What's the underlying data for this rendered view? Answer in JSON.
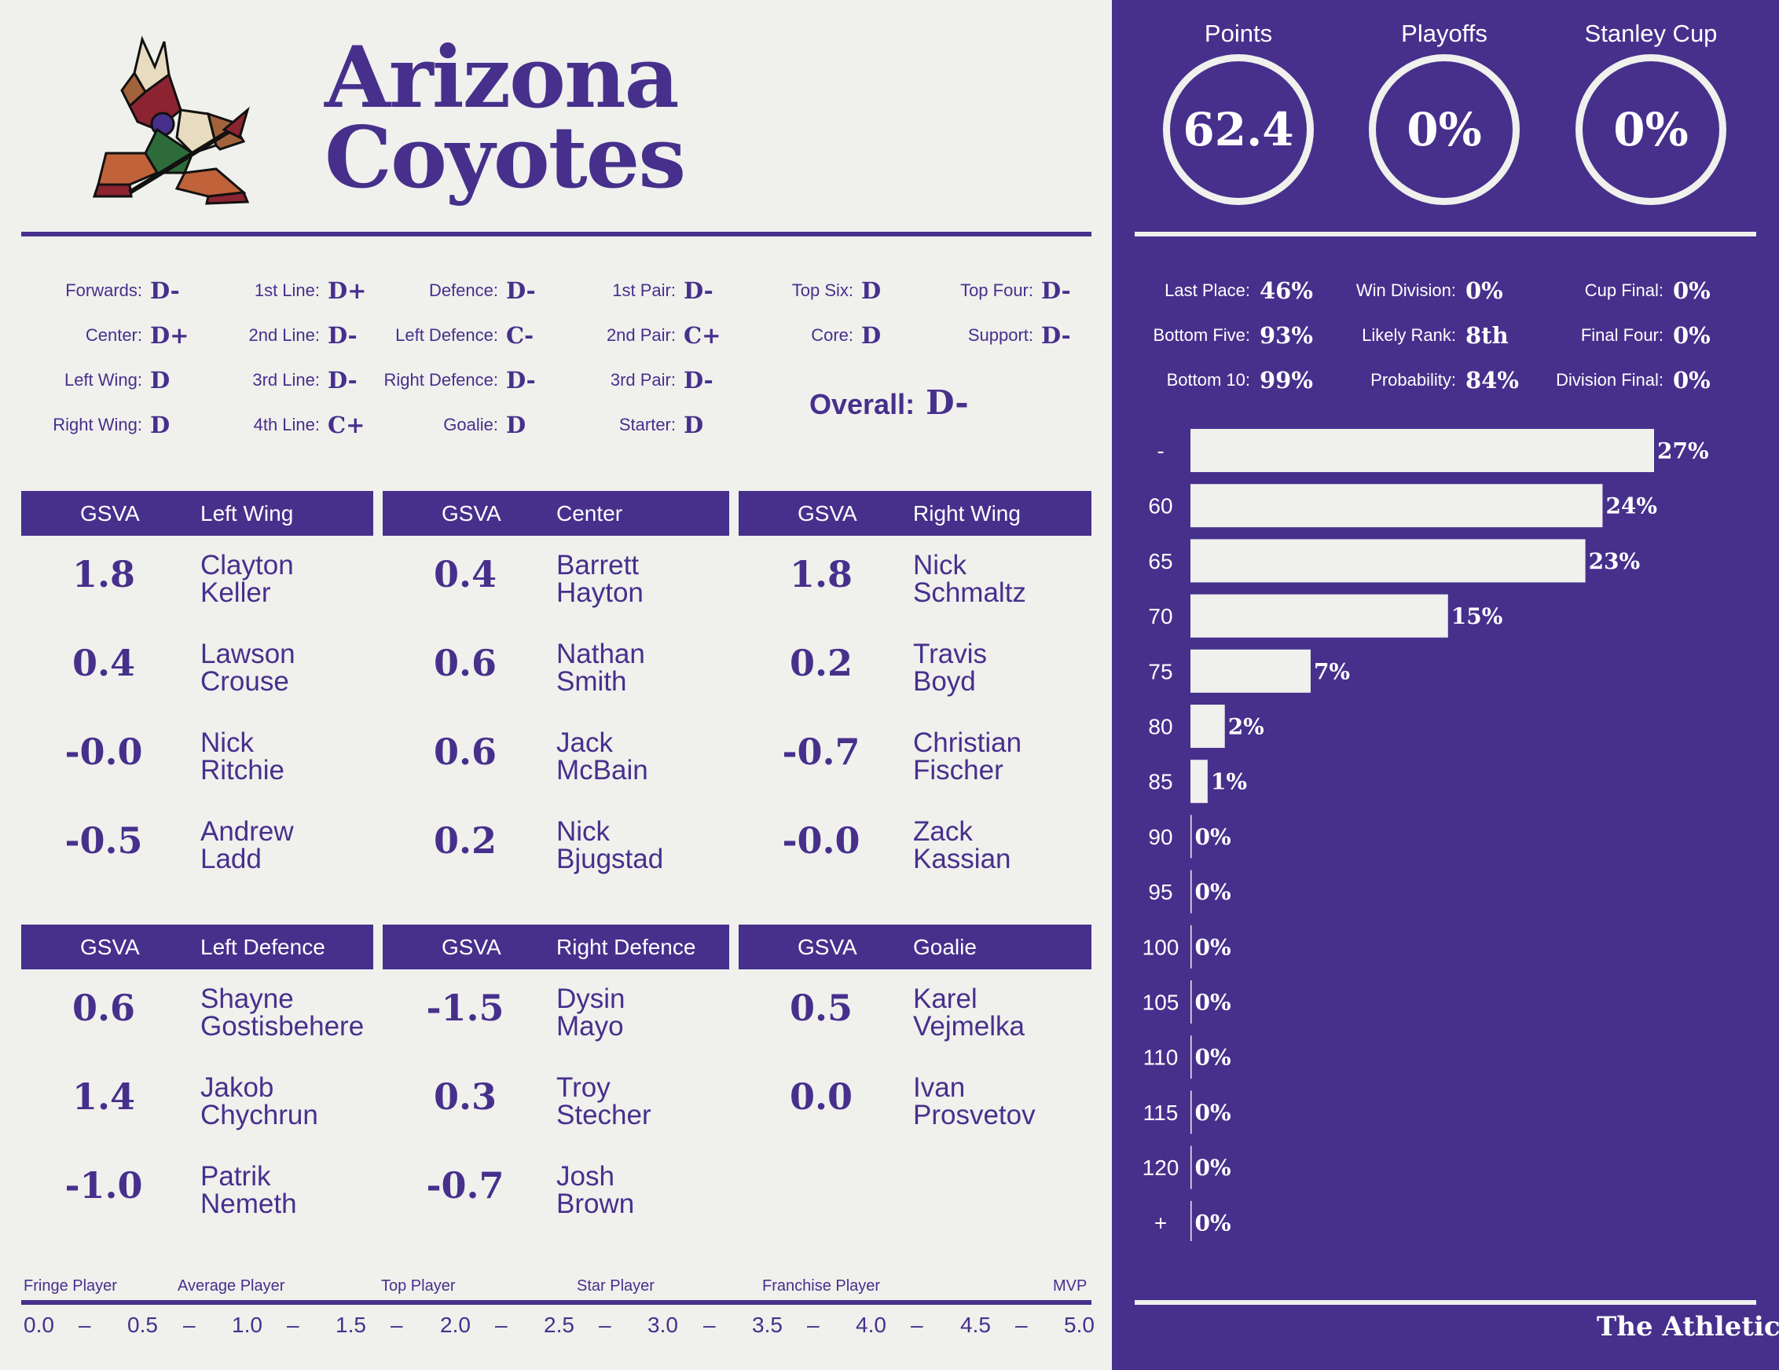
{
  "team": {
    "line1": "Arizona",
    "line2": "Coyotes",
    "logo_icon": "coyote-kachina-logo-icon"
  },
  "grades": [
    {
      "label": "Forwards:",
      "value": "D-"
    },
    {
      "label": "Center:",
      "value": "D+"
    },
    {
      "label": "Left Wing:",
      "value": "D"
    },
    {
      "label": "Right Wing:",
      "value": "D"
    },
    {
      "label": "1st Line:",
      "value": "D+"
    },
    {
      "label": "2nd Line:",
      "value": "D-"
    },
    {
      "label": "3rd Line:",
      "value": "D-"
    },
    {
      "label": "4th Line:",
      "value": "C+"
    },
    {
      "label": "Defence:",
      "value": "D-"
    },
    {
      "label": "Left Defence:",
      "value": "C-"
    },
    {
      "label": "Right Defence:",
      "value": "D-"
    },
    {
      "label": "Goalie:",
      "value": "D"
    },
    {
      "label": "1st Pair:",
      "value": "D-"
    },
    {
      "label": "2nd Pair:",
      "value": "C+"
    },
    {
      "label": "3rd Pair:",
      "value": "D-"
    },
    {
      "label": "Starter:",
      "value": "D"
    },
    {
      "label": "Top Six:",
      "value": "D"
    },
    {
      "label": "Core:",
      "value": "D"
    },
    {
      "label": "Top Four:",
      "value": "D-"
    },
    {
      "label": "Support:",
      "value": "D-"
    }
  ],
  "overall": {
    "label": "Overall:",
    "value": "D-"
  },
  "tables": [
    {
      "gsva_label": "GSVA",
      "position": "Left Wing",
      "players": [
        {
          "gsva": "1.8",
          "first": "Clayton",
          "last": "Keller"
        },
        {
          "gsva": "0.4",
          "first": "Lawson",
          "last": "Crouse"
        },
        {
          "gsva": "-0.0",
          "first": "Nick",
          "last": "Ritchie"
        },
        {
          "gsva": "-0.5",
          "first": "Andrew",
          "last": "Ladd"
        }
      ]
    },
    {
      "gsva_label": "GSVA",
      "position": "Center",
      "players": [
        {
          "gsva": "0.4",
          "first": "Barrett",
          "last": "Hayton"
        },
        {
          "gsva": "0.6",
          "first": "Nathan",
          "last": "Smith"
        },
        {
          "gsva": "0.6",
          "first": "Jack",
          "last": "McBain"
        },
        {
          "gsva": "0.2",
          "first": "Nick",
          "last": "Bjugstad"
        }
      ]
    },
    {
      "gsva_label": "GSVA",
      "position": "Right Wing",
      "players": [
        {
          "gsva": "1.8",
          "first": "Nick",
          "last": "Schmaltz"
        },
        {
          "gsva": "0.2",
          "first": "Travis",
          "last": "Boyd"
        },
        {
          "gsva": "-0.7",
          "first": "Christian",
          "last": "Fischer"
        },
        {
          "gsva": "-0.0",
          "first": "Zack",
          "last": "Kassian"
        }
      ]
    },
    {
      "gsva_label": "GSVA",
      "position": "Left Defence",
      "players": [
        {
          "gsva": "0.6",
          "first": "Shayne",
          "last": "Gostisbehere"
        },
        {
          "gsva": "1.4",
          "first": "Jakob",
          "last": "Chychrun"
        },
        {
          "gsva": "-1.0",
          "first": "Patrik",
          "last": "Nemeth"
        }
      ]
    },
    {
      "gsva_label": "GSVA",
      "position": "Right Defence",
      "players": [
        {
          "gsva": "-1.5",
          "first": "Dysin",
          "last": "Mayo"
        },
        {
          "gsva": "0.3",
          "first": "Troy",
          "last": "Stecher"
        },
        {
          "gsva": "-0.7",
          "first": "Josh",
          "last": "Brown"
        }
      ]
    },
    {
      "gsva_label": "GSVA",
      "position": "Goalie",
      "players": [
        {
          "gsva": "0.5",
          "first": "Karel",
          "last": "Vejmelka"
        },
        {
          "gsva": "0.0",
          "first": "Ivan",
          "last": "Prosvetov"
        }
      ]
    }
  ],
  "scale": {
    "labels": [
      "Fringe Player",
      "Average Player",
      "Top Player",
      "Star Player",
      "Franchise Player",
      "MVP"
    ],
    "numbers": [
      "0.0",
      "–",
      "0.5",
      "–",
      "1.0",
      "–",
      "1.5",
      "–",
      "2.0",
      "–",
      "2.5",
      "–",
      "3.0",
      "–",
      "3.5",
      "–",
      "4.0",
      "–",
      "4.5",
      "–",
      "5.0"
    ]
  },
  "projections": [
    {
      "title": "Points",
      "value": "62.4"
    },
    {
      "title": "Playoffs",
      "value": "0%"
    },
    {
      "title": "Stanley Cup",
      "value": "0%"
    }
  ],
  "odds": [
    {
      "label": "Last Place:",
      "value": "46%"
    },
    {
      "label": "Bottom Five:",
      "value": "93%"
    },
    {
      "label": "Bottom 10:",
      "value": "99%"
    },
    {
      "label": "Win Division:",
      "value": "0%"
    },
    {
      "label": "Likely Rank:",
      "value": "8th"
    },
    {
      "label": "Probability:",
      "value": "84%"
    },
    {
      "label": "Cup Final:",
      "value": "0%"
    },
    {
      "label": "Final Four:",
      "value": "0%"
    },
    {
      "label": "Division Final:",
      "value": "0%"
    }
  ],
  "chart_data": {
    "type": "bar",
    "orientation": "horizontal",
    "categories": [
      "-",
      "60",
      "65",
      "70",
      "75",
      "80",
      "85",
      "90",
      "95",
      "100",
      "105",
      "110",
      "115",
      "120",
      "+"
    ],
    "values": [
      27,
      24,
      23,
      15,
      7,
      2,
      1,
      0,
      0,
      0,
      0,
      0,
      0,
      0,
      0
    ],
    "value_labels": [
      "27%",
      "24%",
      "23%",
      "15%",
      "7%",
      "2%",
      "1%",
      "0%",
      "0%",
      "0%",
      "0%",
      "0%",
      "0%",
      "0%",
      "0%"
    ],
    "title": "",
    "xlabel": "",
    "ylabel": "",
    "xlim": [
      0,
      27
    ],
    "grid": false,
    "bar_color": "#f0f0ed"
  },
  "brand": "The Athletic",
  "colors": {
    "purple": "#46308c",
    "light": "#f0f0ed"
  }
}
